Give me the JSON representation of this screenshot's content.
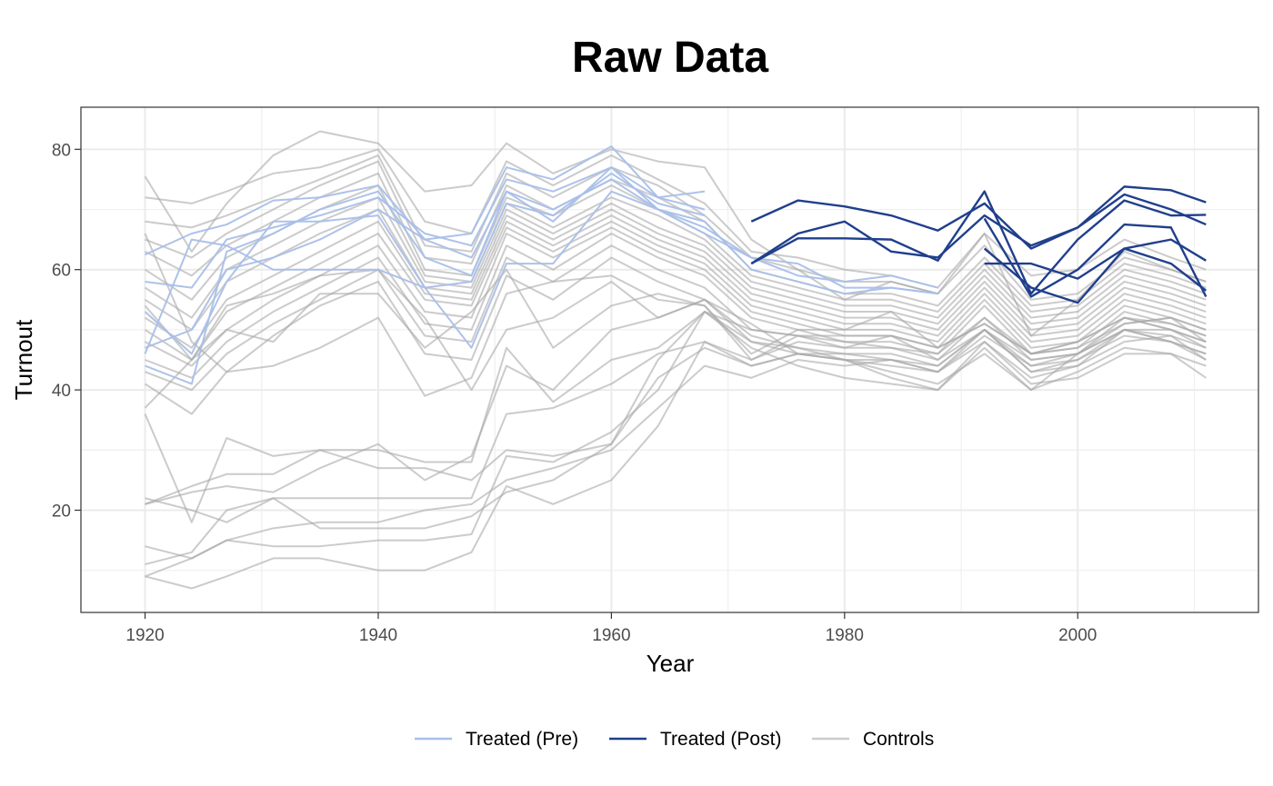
{
  "chart_data": {
    "type": "line",
    "title": "Raw Data",
    "xlabel": "Year",
    "ylabel": "Turnout",
    "xlim": [
      1914.5,
      2015.5
    ],
    "ylim": [
      3,
      87
    ],
    "xticks": [
      1920,
      1940,
      1960,
      1980,
      2000
    ],
    "yticks": [
      20,
      40,
      60,
      80
    ],
    "grid": true,
    "legend_position": "bottom",
    "colors": {
      "treated_pre": "#a9bfe9",
      "treated_post": "#203f8c",
      "controls": "#a8a8a8"
    },
    "legend": [
      {
        "label": "Treated (Pre)",
        "key": "treated_pre"
      },
      {
        "label": "Treated (Post)",
        "key": "treated_post"
      },
      {
        "label": "Controls",
        "key": "controls"
      }
    ],
    "years": [
      1920,
      1924,
      1927,
      1931,
      1935,
      1940,
      1944,
      1948,
      1951,
      1955,
      1960,
      1964,
      1968,
      1972,
      1976,
      1980,
      1984,
      1988,
      1992,
      1996,
      2000,
      2004,
      2008,
      2011
    ],
    "series": [
      {
        "group": "treated",
        "treat_year": 1972,
        "values": [
          62.5,
          66,
          67.5,
          71.5,
          72,
          74,
          65,
          66,
          77,
          75,
          80.5,
          72,
          73,
          68,
          71.5,
          70.5,
          69,
          66.5,
          71,
          63.5,
          67,
          73.8,
          73.2,
          71.2
        ]
      },
      {
        "group": "treated",
        "treat_year": 1972,
        "values": [
          58,
          57,
          65,
          67,
          69,
          72,
          66,
          64,
          75,
          73,
          77,
          72,
          70,
          61,
          66,
          68,
          63,
          62,
          69,
          64,
          67,
          72.5,
          70,
          67.5
        ]
      },
      {
        "group": "treated",
        "treat_year": 1972,
        "values": [
          46,
          65,
          64,
          60,
          60,
          60,
          57,
          58,
          71,
          69,
          76,
          71,
          69,
          61,
          65.2,
          65.2,
          65,
          61.5,
          73,
          56,
          65,
          71.5,
          69,
          69.1
        ]
      },
      {
        "group": "treated",
        "treat_year": 1992,
        "values": [
          44,
          41,
          63,
          66,
          70,
          73,
          62,
          59,
          73,
          70,
          75,
          70,
          66,
          62,
          61,
          57,
          57,
          56,
          61,
          61,
          58.5,
          63.5,
          65,
          61.5
        ]
      },
      {
        "group": "treated",
        "treat_year": 1992,
        "values": [
          53,
          46,
          58,
          68,
          68,
          69,
          57,
          47,
          61,
          61,
          73,
          70,
          67,
          62,
          59,
          58,
          59,
          57,
          63.5,
          57,
          54.5,
          63.5,
          61,
          56.5
        ]
      },
      {
        "group": "treated",
        "treat_year": 1992,
        "values": [
          47,
          50,
          60,
          62,
          65,
          70,
          65,
          62,
          73,
          68,
          77,
          70,
          68,
          60,
          58,
          56,
          57,
          56,
          68.5,
          55.5,
          60,
          67.5,
          67,
          55.5
        ]
      },
      {
        "group": "control",
        "values": [
          75.5,
          63,
          71,
          79,
          83,
          81,
          73,
          74,
          81,
          76,
          80,
          78,
          77,
          65,
          60,
          55,
          58,
          56,
          66,
          49,
          55,
          63,
          60,
          58
        ]
      },
      {
        "group": "control",
        "values": [
          72,
          71,
          73,
          76,
          77,
          80,
          68,
          66,
          78,
          74,
          79,
          75,
          71,
          63,
          62,
          60,
          59,
          57,
          66,
          59,
          60,
          65,
          62,
          60
        ]
      },
      {
        "group": "control",
        "values": [
          68,
          67,
          69,
          72,
          75,
          79,
          64,
          63,
          76,
          72,
          77,
          74,
          69,
          62,
          60,
          58,
          58,
          56,
          64,
          55,
          56,
          62,
          60,
          58
        ]
      },
      {
        "group": "control",
        "values": [
          65,
          62,
          66,
          70,
          74,
          78,
          62,
          61,
          74,
          70,
          75,
          72,
          68,
          60,
          58,
          56,
          56,
          54,
          62,
          54,
          55,
          61,
          59,
          57
        ]
      },
      {
        "group": "control",
        "values": [
          63,
          59,
          64,
          68,
          72,
          76,
          60,
          59,
          72,
          69,
          74,
          70,
          66,
          59,
          57,
          55,
          55,
          53,
          61,
          53,
          54,
          60,
          58,
          56
        ]
      },
      {
        "group": "control",
        "values": [
          60,
          55,
          62,
          66,
          70,
          74,
          59,
          58,
          71,
          67,
          72,
          69,
          65,
          58,
          56,
          54,
          54,
          52,
          60,
          52,
          53,
          59,
          57,
          55
        ]
      },
      {
        "group": "control",
        "values": [
          57,
          52,
          60,
          64,
          68,
          72,
          58,
          57,
          70,
          66,
          71,
          67,
          64,
          57,
          55,
          53,
          53,
          51,
          59,
          51,
          52,
          58,
          56,
          54
        ]
      },
      {
        "group": "control",
        "values": [
          55,
          50,
          58,
          62,
          66,
          70,
          57,
          56,
          69,
          65,
          70,
          66,
          63,
          56,
          54,
          52,
          52,
          50,
          58,
          50,
          51,
          57,
          55,
          53
        ]
      },
      {
        "group": "control",
        "values": [
          52,
          47,
          55,
          59,
          63,
          68,
          56,
          55,
          68,
          64,
          69,
          65,
          62,
          55,
          53,
          51,
          51,
          49,
          57,
          49,
          50,
          56,
          54,
          52
        ]
      },
      {
        "group": "control",
        "values": [
          50,
          45,
          53,
          57,
          61,
          66,
          55,
          54,
          67,
          63,
          68,
          64,
          61,
          54,
          52,
          50,
          50,
          48,
          56,
          48,
          49,
          55,
          53,
          51
        ]
      },
      {
        "group": "control",
        "values": [
          48,
          44,
          50,
          55,
          59,
          64,
          53,
          52,
          66,
          62,
          67,
          63,
          60,
          53,
          51,
          49,
          49,
          47,
          55,
          47,
          48,
          54,
          52,
          50
        ]
      },
      {
        "group": "control",
        "values": [
          45,
          42,
          48,
          53,
          57,
          62,
          51,
          50,
          64,
          60,
          66,
          62,
          59,
          52,
          50,
          48,
          48,
          46,
          54,
          46,
          47,
          53,
          51,
          49
        ]
      },
      {
        "group": "control",
        "values": [
          43,
          40,
          46,
          51,
          55,
          60,
          49,
          48,
          62,
          58,
          64,
          60,
          57,
          50,
          49,
          47,
          47,
          45,
          52,
          45,
          46,
          52,
          50,
          48
        ]
      },
      {
        "group": "control",
        "values": [
          66,
          48,
          43,
          44,
          47,
          52,
          39,
          42,
          56,
          58,
          59,
          55,
          54,
          45,
          48,
          47,
          49,
          45,
          50,
          44,
          46,
          51,
          52,
          50
        ]
      },
      {
        "group": "control",
        "values": [
          54,
          45,
          50,
          48,
          56,
          56,
          47,
          53,
          60,
          47,
          54,
          56,
          54,
          46,
          50,
          50,
          53,
          47,
          51,
          46,
          48,
          52,
          50,
          48
        ]
      },
      {
        "group": "control",
        "values": [
          41,
          36,
          43,
          49,
          54,
          58,
          46,
          45,
          59,
          55,
          62,
          58,
          55,
          48,
          47,
          45,
          45,
          43,
          50,
          43,
          44,
          50,
          48,
          46
        ]
      },
      {
        "group": "control",
        "values": [
          37,
          45,
          54,
          56,
          59,
          60,
          52,
          40,
          50,
          52,
          58,
          52,
          55,
          51,
          46,
          45,
          43,
          41,
          46,
          40,
          46,
          50,
          48,
          46
        ]
      },
      {
        "group": "control",
        "values": [
          36,
          18,
          32,
          29,
          30,
          30,
          28,
          28,
          47,
          38,
          45,
          47,
          53,
          47,
          44,
          42,
          41,
          40,
          47,
          40,
          43,
          47,
          46,
          44
        ]
      },
      {
        "group": "control",
        "values": [
          21,
          24,
          26,
          26,
          30,
          27,
          27,
          25,
          30,
          29,
          31,
          45,
          53,
          48,
          46,
          45,
          42,
          40,
          48,
          42,
          44,
          48,
          49,
          45
        ]
      },
      {
        "group": "control",
        "values": [
          21,
          23,
          24,
          23,
          27,
          31,
          25,
          29,
          44,
          40,
          50,
          52,
          55,
          49,
          47,
          46,
          45,
          44,
          50,
          43,
          45,
          49,
          48,
          45
        ]
      },
      {
        "group": "control",
        "values": [
          14,
          12,
          15,
          14,
          14,
          15,
          15,
          16,
          29,
          28,
          33,
          40,
          53,
          50,
          49,
          48,
          47,
          46,
          52,
          46,
          48,
          52,
          51,
          49
        ]
      },
      {
        "group": "control",
        "values": [
          11,
          13,
          20,
          22,
          22,
          22,
          22,
          22,
          36,
          37,
          41,
          46,
          48,
          44,
          46,
          45,
          44,
          43,
          48,
          41,
          42,
          46,
          46,
          42
        ]
      },
      {
        "group": "control",
        "values": [
          9,
          7,
          9,
          12,
          12,
          10,
          10,
          13,
          24,
          21,
          25,
          34,
          48,
          45,
          49,
          49,
          49,
          47,
          51,
          46,
          47,
          51,
          52,
          48
        ]
      },
      {
        "group": "control",
        "values": [
          9,
          12,
          15,
          17,
          18,
          18,
          20,
          21,
          25,
          27,
          30,
          37,
          44,
          42,
          45,
          44,
          45,
          43,
          49,
          44,
          45,
          50,
          49,
          47
        ]
      },
      {
        "group": "control",
        "values": [
          22,
          20,
          18,
          22,
          17,
          17,
          17,
          19,
          23,
          25,
          31,
          42,
          47,
          44,
          46,
          46,
          46,
          44,
          50,
          45,
          46,
          50,
          50,
          47
        ]
      }
    ]
  }
}
